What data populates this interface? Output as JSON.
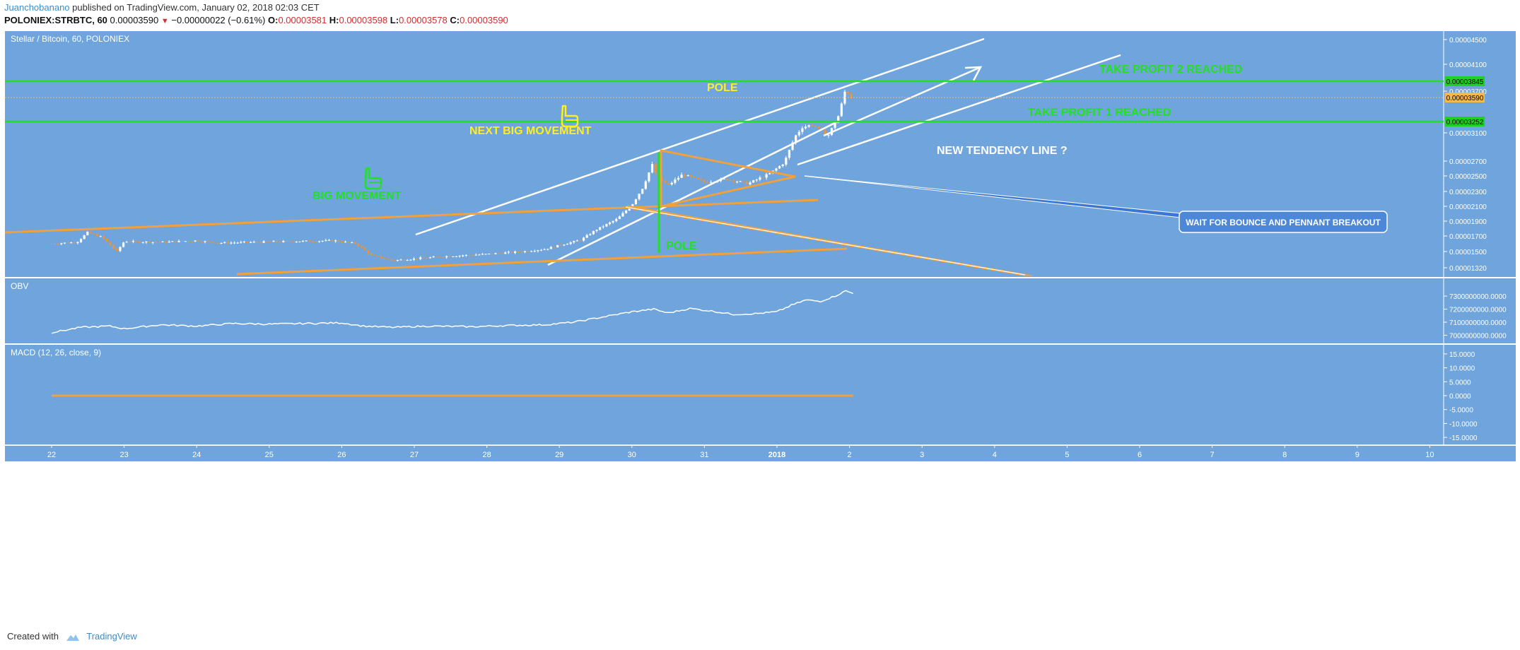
{
  "header": {
    "author": "Juanchobanano",
    "published": "published on TradingView.com, January 02, 2018 02:03 CET",
    "symbol": "POLONIEX:STRBTC, 60",
    "last": "0.00003590",
    "change": "−0.00000022 (−0.61%)",
    "open_label": "O:",
    "open": "0.00003581",
    "high_label": "H:",
    "high": "0.00003598",
    "low_label": "L:",
    "low": "0.00003578",
    "close_label": "C:",
    "close": "0.00003590"
  },
  "footer": {
    "created_with": "Created with",
    "brand": "TradingView"
  },
  "colors": {
    "background": "#6fa5dc",
    "green": "#22e022",
    "orange": "#f0a03c",
    "yellow": "#ffee22",
    "white": "#ffffff",
    "up_candle": "#ffffff",
    "down_candle": "#e8943c",
    "price_tag": "#f7b84b",
    "level_tag": "#1fd21f",
    "callout": "#5b8fd6"
  },
  "chart_data": [
    {
      "type": "candlestick",
      "title": "Stellar / Bitcoin, 60, POLONIEX",
      "x_ticks": [
        "22",
        "23",
        "24",
        "25",
        "26",
        "27",
        "28",
        "29",
        "30",
        "31",
        "2018",
        "2",
        "3",
        "4",
        "5",
        "6",
        "7",
        "8",
        "9",
        "10"
      ],
      "y_ticks": [
        "0.00004500",
        "0.00004100",
        "0.00003700",
        "0.00003100",
        "0.00002700",
        "0.00002500",
        "0.00002300",
        "0.00002100",
        "0.00001900",
        "0.00001700",
        "0.00001500",
        "0.00001320"
      ],
      "last_price": "0.00003590",
      "horizontal_levels": [
        {
          "value": "0.00003845",
          "label": "TAKE PROFIT 2 REACHED"
        },
        {
          "value": "0.00003252",
          "label": "TAKE PROFIT 1 REACHED"
        }
      ],
      "price_path": [
        [
          0,
          1.6e-05
        ],
        [
          0.35,
          1.62e-05
        ],
        [
          0.5,
          1.75e-05
        ],
        [
          0.7,
          1.68e-05
        ],
        [
          0.9,
          1.5e-05
        ],
        [
          1.0,
          1.63e-05
        ],
        [
          1.5,
          1.62e-05
        ],
        [
          2.0,
          1.64e-05
        ],
        [
          2.3,
          1.61e-05
        ],
        [
          2.8,
          1.62e-05
        ],
        [
          3.3,
          1.63e-05
        ],
        [
          3.9,
          1.64e-05
        ],
        [
          4.2,
          1.6e-05
        ],
        [
          4.4,
          1.46e-05
        ],
        [
          4.7,
          1.4e-05
        ],
        [
          5.0,
          1.42e-05
        ],
        [
          5.5,
          1.45e-05
        ],
        [
          6.0,
          1.47e-05
        ],
        [
          6.5,
          1.5e-05
        ],
        [
          6.8,
          1.53e-05
        ],
        [
          7.0,
          1.58e-05
        ],
        [
          7.3,
          1.65e-05
        ],
        [
          7.5,
          1.78e-05
        ],
        [
          7.8,
          1.93e-05
        ],
        [
          8.0,
          2.12e-05
        ],
        [
          8.15,
          2.35e-05
        ],
        [
          8.28,
          2.65e-05
        ],
        [
          8.35,
          2.48e-05
        ],
        [
          8.5,
          2.38e-05
        ],
        [
          8.7,
          2.52e-05
        ],
        [
          9.0,
          2.42e-05
        ],
        [
          9.3,
          2.46e-05
        ],
        [
          9.6,
          2.4e-05
        ],
        [
          9.9,
          2.53e-05
        ],
        [
          10.1,
          2.68e-05
        ],
        [
          10.25,
          3.05e-05
        ],
        [
          10.35,
          3.18e-05
        ],
        [
          10.5,
          3.22e-05
        ],
        [
          10.7,
          3.05e-05
        ],
        [
          10.85,
          3.35e-05
        ],
        [
          10.95,
          3.75e-05
        ],
        [
          11.0,
          3.62e-05
        ],
        [
          11.05,
          3.59e-05
        ]
      ],
      "annotations": [
        {
          "text": "POLE",
          "color": "yellow"
        },
        {
          "text": "NEXT BIG MOVEMENT",
          "color": "yellow"
        },
        {
          "text": "BIG MOVEMENT",
          "color": "green"
        },
        {
          "text": "NEW TENDENCY LINE ?",
          "color": "white"
        },
        {
          "text": "POLE",
          "color": "green"
        },
        {
          "text": "WAIT FOR BOUNCE AND PENNANT BREAKOUT",
          "color": "white",
          "boxed": true
        }
      ]
    },
    {
      "type": "line",
      "title": "OBV",
      "y_ticks": [
        "7300000000.0000",
        "7200000000.0000",
        "7100000000.0000",
        "7000000000.0000"
      ],
      "ylim": [
        6970000000,
        7360000000
      ],
      "points": [
        [
          0,
          7020000000
        ],
        [
          0.4,
          7060000000
        ],
        [
          0.8,
          7070000000
        ],
        [
          1.0,
          7050000000
        ],
        [
          1.5,
          7080000000
        ],
        [
          2.0,
          7070000000
        ],
        [
          2.5,
          7090000000
        ],
        [
          3.0,
          7085000000
        ],
        [
          3.5,
          7090000000
        ],
        [
          4.0,
          7095000000
        ],
        [
          4.3,
          7070000000
        ],
        [
          4.7,
          7060000000
        ],
        [
          5.2,
          7070000000
        ],
        [
          5.8,
          7065000000
        ],
        [
          6.3,
          7075000000
        ],
        [
          6.8,
          7080000000
        ],
        [
          7.2,
          7100000000
        ],
        [
          7.6,
          7140000000
        ],
        [
          8.0,
          7180000000
        ],
        [
          8.3,
          7200000000
        ],
        [
          8.5,
          7170000000
        ],
        [
          8.8,
          7205000000
        ],
        [
          9.1,
          7185000000
        ],
        [
          9.4,
          7160000000
        ],
        [
          9.7,
          7165000000
        ],
        [
          10.0,
          7180000000
        ],
        [
          10.2,
          7230000000
        ],
        [
          10.4,
          7270000000
        ],
        [
          10.6,
          7260000000
        ],
        [
          10.8,
          7300000000
        ],
        [
          10.95,
          7340000000
        ],
        [
          11.05,
          7320000000
        ]
      ]
    },
    {
      "type": "line",
      "title": "MACD (12, 26, close, 9)",
      "y_ticks": [
        "15.0000",
        "10.0000",
        "5.0000",
        "0.0000",
        "-5.0000",
        "-10.0000",
        "-15.0000"
      ],
      "ylim": [
        -16.5,
        16.5
      ],
      "points": [
        [
          0,
          0
        ],
        [
          11.05,
          0
        ]
      ]
    }
  ]
}
